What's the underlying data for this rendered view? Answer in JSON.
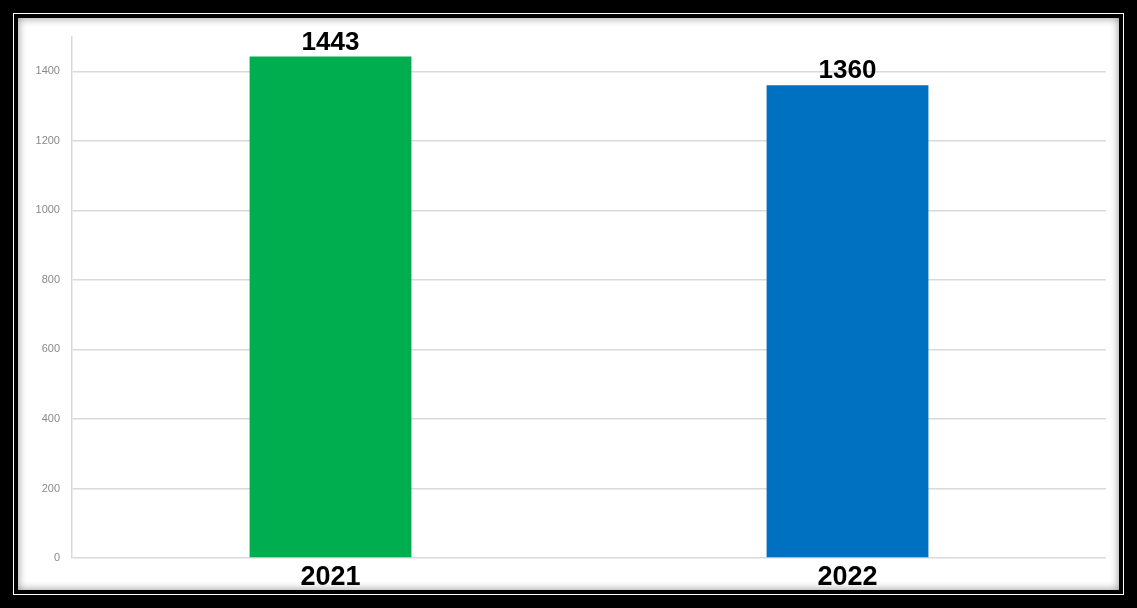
{
  "chart_data": {
    "type": "bar",
    "categories": [
      "2021",
      "2022"
    ],
    "values": [
      1443,
      1360
    ],
    "colors": [
      "#00ad4f",
      "#0070c0"
    ],
    "ylim": [
      0,
      1500
    ],
    "yticks": [
      0,
      200,
      400,
      600,
      800,
      1000,
      1200,
      1400
    ],
    "grid": "y",
    "data_labels": true
  }
}
